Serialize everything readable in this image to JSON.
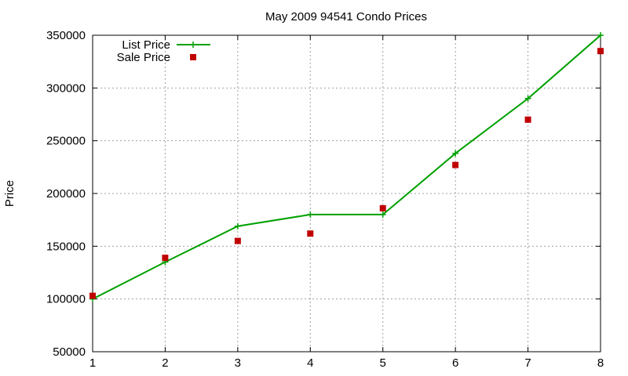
{
  "chart_data": {
    "type": "line",
    "title": "May 2009 94541 Condo Prices",
    "xlabel": "",
    "ylabel": "Price",
    "x": [
      1,
      2,
      3,
      4,
      5,
      6,
      7,
      8
    ],
    "xlim": [
      1,
      8
    ],
    "ylim": [
      50000,
      350000
    ],
    "xticks": [
      "1",
      "2",
      "3",
      "4",
      "5",
      "6",
      "7",
      "8"
    ],
    "yticks": [
      "50000",
      "100000",
      "150000",
      "200000",
      "250000",
      "300000",
      "350000"
    ],
    "grid": true,
    "legend_position": "top-left",
    "series": [
      {
        "name": "List Price",
        "style": "linespoints",
        "marker": "plus",
        "color": "#00a000",
        "values": [
          100000,
          135000,
          169000,
          180000,
          180000,
          238000,
          290000,
          350000
        ]
      },
      {
        "name": "Sale Price",
        "style": "points",
        "marker": "square",
        "color": "#c00000",
        "values": [
          103000,
          139000,
          155000,
          162000,
          186000,
          227000,
          270000,
          335000
        ]
      }
    ]
  }
}
